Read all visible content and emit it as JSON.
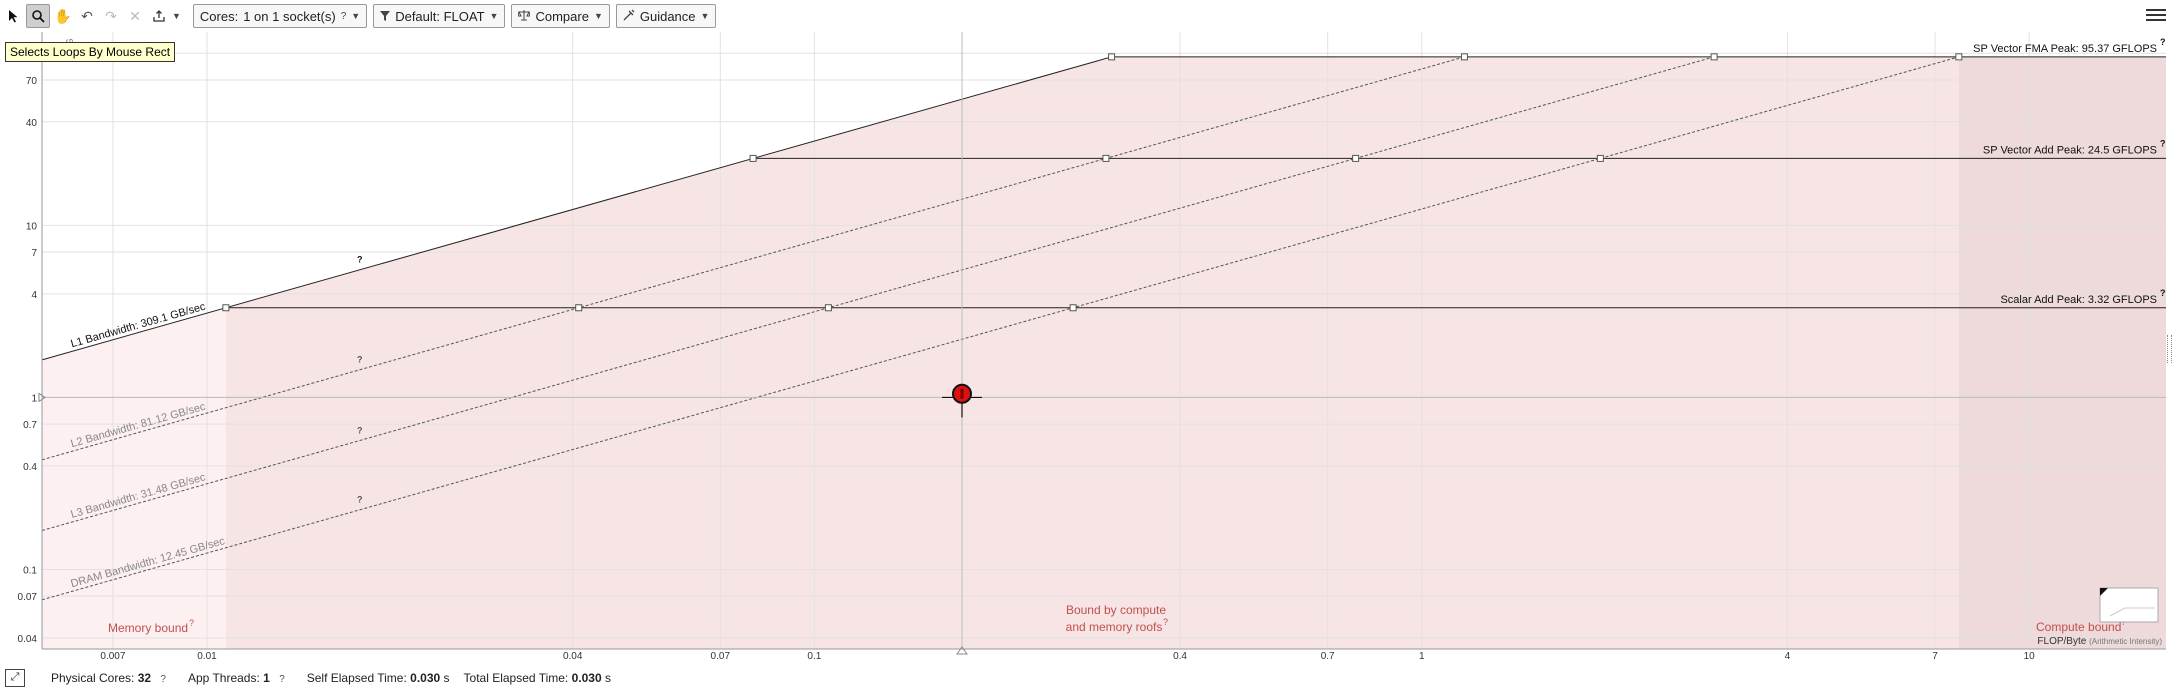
{
  "toolbar": {
    "tools": [
      {
        "name": "select-arrow-icon",
        "glyph": "➤"
      },
      {
        "name": "magnifier-icon",
        "glyph": "🔍"
      },
      {
        "name": "hand-icon",
        "glyph": "✋"
      },
      {
        "name": "undo-icon",
        "glyph": "↶"
      },
      {
        "name": "redo-icon",
        "glyph": "↷"
      },
      {
        "name": "clear-icon",
        "glyph": "✕"
      },
      {
        "name": "export-icon",
        "glyph": "⇪"
      }
    ],
    "cores_prefix": "Cores:",
    "cores_value": "1 on 1 socket(s)",
    "help_glyph": "?",
    "precision_label": "Default: FLOAT",
    "compare_label": "Compare",
    "guidance_label": "Guidance"
  },
  "tooltip": "Selects Loops By Mouse Rect",
  "status": {
    "physical_cores_label": "Physical Cores:",
    "physical_cores_value": "32",
    "app_threads_label": "App Threads:",
    "app_threads_value": "1",
    "self_time_label": "Self Elapsed Time:",
    "self_time_value": "0.030",
    "total_time_label": "Total Elapsed Time:",
    "total_time_value": "0.030",
    "seconds_unit": "s",
    "help_glyph": "?"
  },
  "chart_data": {
    "type": "line",
    "scale": "log-log",
    "xlabel": "FLOP/Byte",
    "xlabel_note": "(Arithmetic Intensity)",
    "ylabel": "G",
    "x_ticks": [
      0.007,
      0.01,
      0.04,
      0.07,
      0.1,
      0.4,
      0.7,
      1,
      4,
      7,
      10
    ],
    "y_ticks": [
      0.04,
      0.07,
      0.1,
      0.4,
      0.7,
      1,
      4,
      7,
      10,
      40,
      70,
      100
    ],
    "xlim": [
      0.00535,
      16.8
    ],
    "ylim": [
      0.0345,
      133
    ],
    "compute_roofs": [
      {
        "label": "SP Vector FMA Peak: 95.37 GFLOPS",
        "value": 95.37
      },
      {
        "label": "SP Vector Add Peak: 24.5 GFLOPS",
        "value": 24.5
      },
      {
        "label": "Scalar Add Peak: 3.32 GFLOPS",
        "value": 3.32
      }
    ],
    "memory_roofs": [
      {
        "label": "L1 Bandwidth: 309.1 GB/sec",
        "value": 309.1,
        "style": "solid"
      },
      {
        "label": "L2 Bandwidth: 81.12 GB/sec",
        "value": 81.12,
        "style": "dashed"
      },
      {
        "label": "L3 Bandwidth: 31.48 GB/sec",
        "value": 31.48,
        "style": "dashed"
      },
      {
        "label": "DRAM Bandwidth: 12.45 GB/sec",
        "value": 12.45,
        "style": "dashed"
      }
    ],
    "points": [
      {
        "x": 0.175,
        "y": 1.05,
        "color": "#dd1111"
      }
    ],
    "regions": {
      "memory": "Memory bound",
      "mixed_line1": "Bound by compute",
      "mixed_line2": "and memory roofs",
      "compute": "Compute bound"
    },
    "help_glyph": "?",
    "colors": {
      "memory_region": "#fdf0f0",
      "mixed_region": "#f7e4e4",
      "compute_region": "#eedada",
      "region_text": "#c05050",
      "point": "#dd1111"
    }
  }
}
